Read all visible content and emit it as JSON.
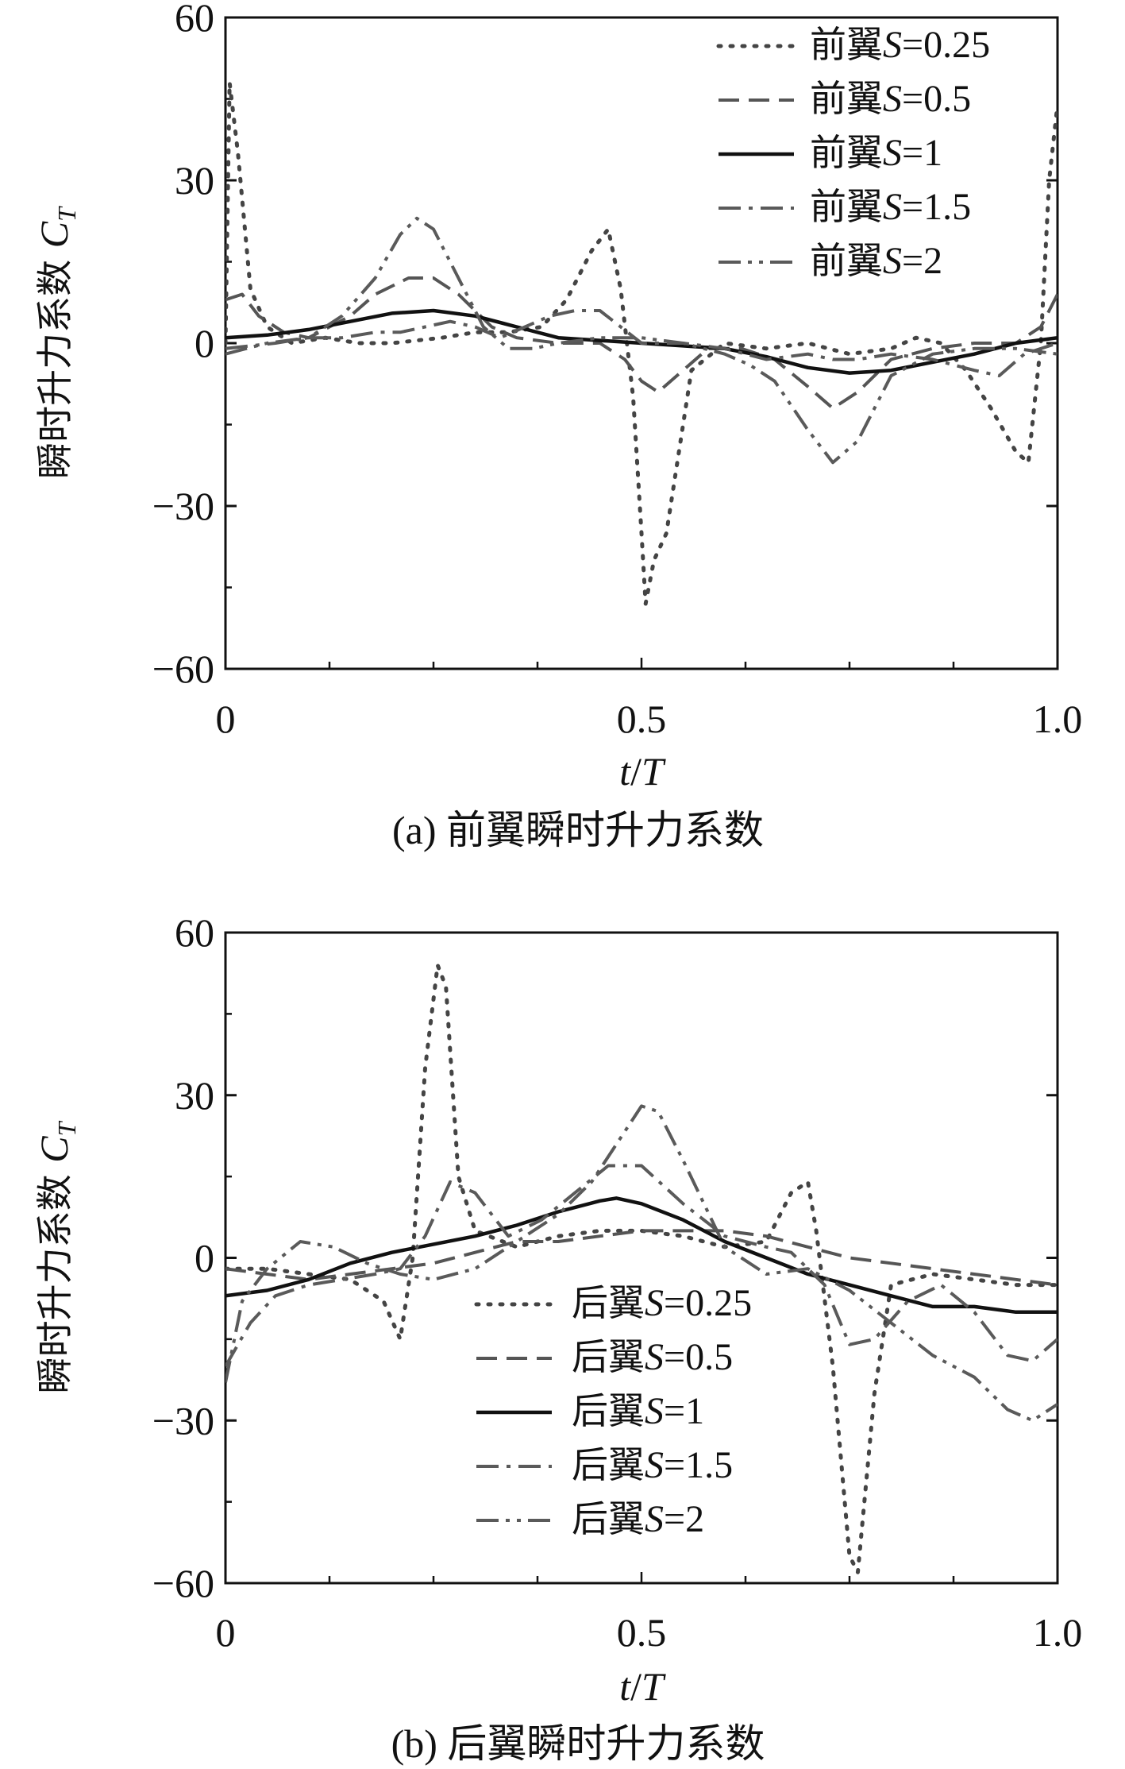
{
  "chart_data": [
    {
      "type": "line",
      "caption": "(a) 前翼瞬时升力系数",
      "ylabel_main": "瞬时升力系数",
      "ylabel_sym": "C",
      "ylabel_sub": "T",
      "xlabel_a": "t",
      "xlabel_b": "/",
      "xlabel_c": "T",
      "xlim": [
        0,
        1
      ],
      "ylim": [
        -60,
        60
      ],
      "xticks": [
        0,
        0.5,
        1.0
      ],
      "xtick_labels": [
        "0",
        "0.5",
        "1.0"
      ],
      "yticks": [
        -60,
        -30,
        0,
        30,
        60
      ],
      "ytick_labels": [
        "−60",
        "−30",
        "0",
        "30",
        "60"
      ],
      "legend_position": "top-right",
      "series": [
        {
          "name_prefix": "前翼",
          "name_var": "S",
          "name_val": "=0.25",
          "style": "dotted",
          "x": [
            0,
            0.005,
            0.015,
            0.03,
            0.05,
            0.08,
            0.12,
            0.16,
            0.2,
            0.26,
            0.3,
            0.34,
            0.38,
            0.41,
            0.44,
            0.46,
            0.475,
            0.49,
            0.5,
            0.505,
            0.515,
            0.53,
            0.56,
            0.6,
            0.65,
            0.7,
            0.75,
            0.8,
            0.83,
            0.86,
            0.89,
            0.92,
            0.95,
            0.965,
            0.98,
            0.99,
            1.0
          ],
          "y": [
            0,
            48,
            35,
            10,
            3,
            0,
            1,
            0,
            0,
            1,
            2,
            2,
            3,
            8,
            17,
            21,
            10,
            -10,
            -35,
            -48,
            -40,
            -35,
            -5,
            0,
            -1,
            0,
            -2,
            -1,
            1,
            0,
            -5,
            -12,
            -20,
            -22,
            0,
            30,
            44
          ]
        },
        {
          "name_prefix": "前翼",
          "name_var": "S",
          "name_val": "=0.5",
          "style": "dashed",
          "x": [
            0,
            0.02,
            0.04,
            0.07,
            0.1,
            0.15,
            0.18,
            0.22,
            0.25,
            0.28,
            0.32,
            0.35,
            0.4,
            0.45,
            0.48,
            0.5,
            0.52,
            0.55,
            0.58,
            0.62,
            0.66,
            0.7,
            0.73,
            0.76,
            0.8,
            0.85,
            0.9,
            0.95,
            0.98,
            1.0
          ],
          "y": [
            8,
            9,
            5,
            2,
            1,
            5,
            9,
            12,
            12,
            9,
            3,
            1,
            0,
            0,
            -3,
            -7,
            -9,
            -5,
            -1,
            -1,
            -3,
            -8,
            -12,
            -9,
            -3,
            -1,
            0,
            0,
            3,
            9
          ]
        },
        {
          "name_prefix": "前翼",
          "name_var": "S",
          "name_val": "=1",
          "style": "solid",
          "x": [
            0,
            0.05,
            0.1,
            0.15,
            0.2,
            0.25,
            0.3,
            0.35,
            0.4,
            0.45,
            0.5,
            0.55,
            0.6,
            0.65,
            0.7,
            0.75,
            0.8,
            0.85,
            0.9,
            0.95,
            1.0
          ],
          "y": [
            1,
            1.5,
            2.5,
            4,
            5.5,
            6,
            5,
            3,
            1,
            0.5,
            0,
            -0.5,
            -1,
            -2.5,
            -4.5,
            -5.5,
            -5,
            -3.5,
            -2,
            0,
            1
          ]
        },
        {
          "name_prefix": "前翼",
          "name_var": "S",
          "name_val": "=1.5",
          "style": "dashdot",
          "x": [
            0,
            0.03,
            0.06,
            0.1,
            0.14,
            0.18,
            0.21,
            0.24,
            0.27,
            0.3,
            0.33,
            0.36,
            0.39,
            0.42,
            0.45,
            0.5,
            0.55,
            0.6,
            0.65,
            0.7,
            0.73,
            0.76,
            0.8,
            0.85,
            0.9,
            0.93,
            0.96,
            1.0
          ],
          "y": [
            -1,
            -0.5,
            0,
            1,
            1,
            2,
            2,
            3,
            4,
            3,
            1,
            3,
            5,
            6,
            6,
            0,
            0,
            -1,
            -3,
            -2,
            -3,
            -3,
            -2,
            -3,
            -5,
            -6,
            -2,
            0
          ]
        },
        {
          "name_prefix": "前翼",
          "name_var": "S",
          "name_val": "=2",
          "style": "dashdotdot",
          "x": [
            0,
            0.05,
            0.1,
            0.14,
            0.18,
            0.21,
            0.23,
            0.25,
            0.28,
            0.31,
            0.34,
            0.37,
            0.4,
            0.45,
            0.5,
            0.55,
            0.6,
            0.63,
            0.66,
            0.7,
            0.73,
            0.76,
            0.8,
            0.85,
            0.9,
            0.95,
            1.0
          ],
          "y": [
            -2,
            0,
            1,
            5,
            12,
            20,
            23,
            21,
            12,
            3,
            -1,
            -1,
            0,
            1,
            1,
            0,
            -2,
            -4,
            -7,
            -16,
            -22,
            -18,
            -6,
            -2,
            -1,
            -1,
            -2
          ]
        }
      ]
    },
    {
      "type": "line",
      "caption": "(b) 后翼瞬时升力系数",
      "ylabel_main": "瞬时升力系数",
      "ylabel_sym": "C",
      "ylabel_sub": "T",
      "xlabel_a": "t",
      "xlabel_b": "/",
      "xlabel_c": "T",
      "xlim": [
        0,
        1
      ],
      "ylim": [
        -60,
        60
      ],
      "xticks": [
        0,
        0.5,
        1.0
      ],
      "xtick_labels": [
        "0",
        "0.5",
        "1.0"
      ],
      "yticks": [
        -60,
        -30,
        0,
        30,
        60
      ],
      "ytick_labels": [
        "−60",
        "−30",
        "0",
        "30",
        "60"
      ],
      "legend_position": "bottom-center",
      "series": [
        {
          "name_prefix": "后翼",
          "name_var": "S",
          "name_val": "=0.25",
          "style": "dotted",
          "x": [
            0,
            0.05,
            0.1,
            0.15,
            0.19,
            0.21,
            0.225,
            0.24,
            0.255,
            0.265,
            0.28,
            0.3,
            0.35,
            0.4,
            0.45,
            0.5,
            0.55,
            0.6,
            0.65,
            0.68,
            0.7,
            0.71,
            0.73,
            0.75,
            0.76,
            0.78,
            0.8,
            0.85,
            0.9,
            0.95,
            1.0
          ],
          "y": [
            -2,
            -2,
            -3,
            -4,
            -8,
            -15,
            0,
            35,
            54,
            50,
            15,
            5,
            2,
            4,
            5,
            5,
            4,
            2,
            3,
            12,
            14,
            5,
            -20,
            -55,
            -58,
            -25,
            -5,
            -3,
            -4,
            -5,
            -5
          ]
        },
        {
          "name_prefix": "后翼",
          "name_var": "S",
          "name_val": "=0.5",
          "style": "dashed",
          "x": [
            0,
            0.05,
            0.1,
            0.15,
            0.2,
            0.25,
            0.3,
            0.35,
            0.4,
            0.45,
            0.5,
            0.55,
            0.6,
            0.65,
            0.7,
            0.75,
            0.8,
            0.85,
            0.9,
            0.95,
            1.0
          ],
          "y": [
            -2,
            -3,
            -4,
            -3,
            -2,
            -1,
            1,
            3,
            3,
            4,
            5,
            5,
            5,
            4,
            2,
            0,
            -1,
            -2,
            -3,
            -4,
            -5
          ]
        },
        {
          "name_prefix": "后翼",
          "name_var": "S",
          "name_val": "=1",
          "style": "solid",
          "x": [
            0,
            0.05,
            0.1,
            0.15,
            0.2,
            0.25,
            0.3,
            0.35,
            0.4,
            0.45,
            0.47,
            0.5,
            0.55,
            0.6,
            0.65,
            0.7,
            0.75,
            0.8,
            0.85,
            0.9,
            0.95,
            0.97,
            1.0
          ],
          "y": [
            -7,
            -6,
            -4,
            -1,
            1,
            2.5,
            4,
            6,
            8.5,
            10.5,
            11,
            10,
            7,
            3,
            0,
            -3,
            -5,
            -7,
            -9,
            -9,
            -10,
            -10,
            -10
          ]
        },
        {
          "name_prefix": "后翼",
          "name_var": "S",
          "name_val": "=1.5",
          "style": "dashdot",
          "x": [
            0,
            0.03,
            0.06,
            0.1,
            0.14,
            0.18,
            0.21,
            0.24,
            0.27,
            0.3,
            0.34,
            0.38,
            0.42,
            0.46,
            0.5,
            0.55,
            0.6,
            0.65,
            0.68,
            0.72,
            0.75,
            0.78,
            0.82,
            0.86,
            0.9,
            0.94,
            0.97,
            1.0
          ],
          "y": [
            -20,
            -12,
            -7,
            -5,
            -4,
            -3,
            -2,
            4,
            14,
            12,
            4,
            7,
            12,
            17,
            17,
            10,
            4,
            2,
            1,
            -5,
            -16,
            -15,
            -8,
            -5,
            -10,
            -18,
            -19,
            -15
          ]
        },
        {
          "name_prefix": "后翼",
          "name_var": "S",
          "name_val": "=2",
          "style": "dashdotdot",
          "x": [
            0,
            0.02,
            0.05,
            0.09,
            0.13,
            0.17,
            0.21,
            0.25,
            0.3,
            0.35,
            0.4,
            0.44,
            0.47,
            0.5,
            0.52,
            0.55,
            0.6,
            0.65,
            0.7,
            0.75,
            0.8,
            0.85,
            0.9,
            0.94,
            0.97,
            1.0
          ],
          "y": [
            -23,
            -8,
            -2,
            3,
            2,
            -1,
            -3,
            -4,
            -2,
            3,
            8,
            14,
            21,
            28,
            27,
            18,
            2,
            -3,
            -2,
            -6,
            -12,
            -18,
            -22,
            -28,
            -30,
            -27
          ]
        }
      ]
    }
  ]
}
